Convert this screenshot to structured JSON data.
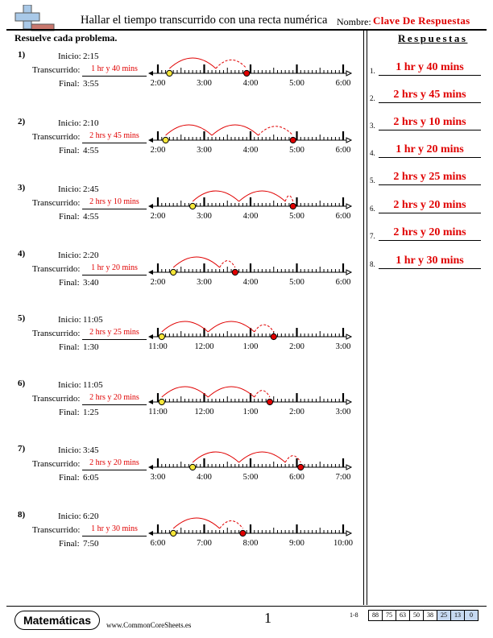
{
  "header": {
    "title": "Hallar el tiempo transcurrido con una recta numérica",
    "name_label": "Nombre:",
    "name_value": "Clave De Respuestas"
  },
  "instructions": "Resuelve cada problema.",
  "answers_heading": "Respuestas",
  "labels": {
    "start": "Inicio:",
    "elapsed": "Transcurrido:",
    "end": "Final:"
  },
  "colors": {
    "accent_red": "#e00000",
    "start_dot": "#f5e63a",
    "end_dot": "#e00000",
    "score_highlight": "#c6d9f1"
  },
  "problems": [
    {
      "num": "1)",
      "start": "2:15",
      "elapsed": "1 hr y 40 mins",
      "end": "3:55",
      "ticks": [
        "2:00",
        "3:00",
        "4:00",
        "5:00",
        "6:00"
      ],
      "start_frac": 0.25,
      "end_frac": 1.9167,
      "jumps": [
        1,
        0.6667
      ]
    },
    {
      "num": "2)",
      "start": "2:10",
      "elapsed": "2 hrs y 45 mins",
      "end": "4:55",
      "ticks": [
        "2:00",
        "3:00",
        "4:00",
        "5:00",
        "6:00"
      ],
      "start_frac": 0.1667,
      "end_frac": 2.9167,
      "jumps": [
        1,
        1,
        0.75
      ]
    },
    {
      "num": "3)",
      "start": "2:45",
      "elapsed": "2 hrs y 10 mins",
      "end": "4:55",
      "ticks": [
        "2:00",
        "3:00",
        "4:00",
        "5:00",
        "6:00"
      ],
      "start_frac": 0.75,
      "end_frac": 2.9167,
      "jumps": [
        1,
        1,
        0.1667
      ]
    },
    {
      "num": "4)",
      "start": "2:20",
      "elapsed": "1 hr y 20 mins",
      "end": "3:40",
      "ticks": [
        "2:00",
        "3:00",
        "4:00",
        "5:00",
        "6:00"
      ],
      "start_frac": 0.3333,
      "end_frac": 1.6667,
      "jumps": [
        1,
        0.3333
      ]
    },
    {
      "num": "5)",
      "start": "11:05",
      "elapsed": "2 hrs y 25 mins",
      "end": "1:30",
      "ticks": [
        "11:00",
        "12:00",
        "1:00",
        "2:00",
        "3:00"
      ],
      "start_frac": 0.0833,
      "end_frac": 2.5,
      "jumps": [
        1,
        1,
        0.4167
      ]
    },
    {
      "num": "6)",
      "start": "11:05",
      "elapsed": "2 hrs y 20 mins",
      "end": "1:25",
      "ticks": [
        "11:00",
        "12:00",
        "1:00",
        "2:00",
        "3:00"
      ],
      "start_frac": 0.0833,
      "end_frac": 2.4167,
      "jumps": [
        1,
        1,
        0.3333
      ]
    },
    {
      "num": "7)",
      "start": "3:45",
      "elapsed": "2 hrs y 20 mins",
      "end": "6:05",
      "ticks": [
        "3:00",
        "4:00",
        "5:00",
        "6:00",
        "7:00"
      ],
      "start_frac": 0.75,
      "end_frac": 3.0833,
      "jumps": [
        1,
        1,
        0.3333
      ]
    },
    {
      "num": "8)",
      "start": "6:20",
      "elapsed": "1 hr y 30 mins",
      "end": "7:50",
      "ticks": [
        "6:00",
        "7:00",
        "8:00",
        "9:00",
        "10:00"
      ],
      "start_frac": 0.3333,
      "end_frac": 1.8333,
      "jumps": [
        1,
        0.5
      ]
    }
  ],
  "answers": [
    {
      "num": "1.",
      "value": "1 hr y 40 mins"
    },
    {
      "num": "2.",
      "value": "2 hrs y 45 mins"
    },
    {
      "num": "3.",
      "value": "2 hrs y 10 mins"
    },
    {
      "num": "4.",
      "value": "1 hr y 20 mins"
    },
    {
      "num": "5.",
      "value": "2 hrs y 25 mins"
    },
    {
      "num": "6.",
      "value": "2 hrs y 20 mins"
    },
    {
      "num": "7.",
      "value": "2 hrs y 20 mins"
    },
    {
      "num": "8.",
      "value": "1 hr y 30 mins"
    }
  ],
  "footer": {
    "brand": "Matemáticas",
    "website": "www.CommonCoreSheets.es",
    "page_number": "1",
    "range": "1-8",
    "scores": [
      "88",
      "75",
      "63",
      "50",
      "38",
      "25",
      "13",
      "0"
    ],
    "highlighted_scores": [
      "25",
      "13",
      "0"
    ]
  }
}
